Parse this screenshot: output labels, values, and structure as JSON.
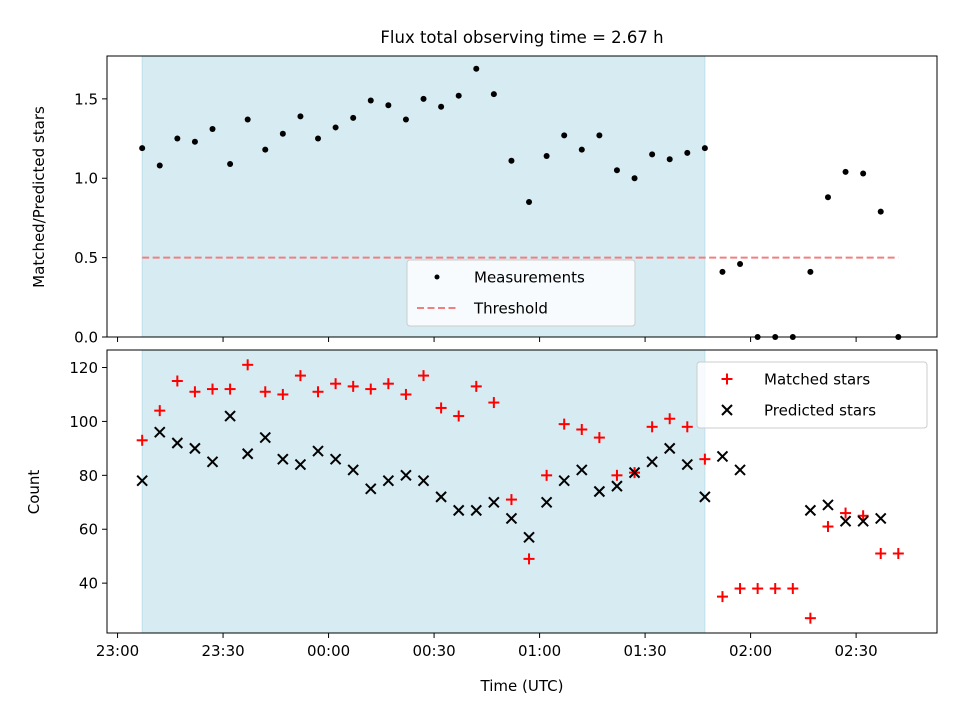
{
  "title": "Flux total observing time = 2.67 h",
  "xlabel": "Time (UTC)",
  "x_tick_labels": [
    "23:00",
    "23:30",
    "00:00",
    "00:30",
    "01:00",
    "01:30",
    "02:00",
    "02:30"
  ],
  "colors": {
    "shade": "#add8e6",
    "measurement": "#000000",
    "threshold": "#f08080",
    "matched": "#ff0000",
    "predicted": "#000000"
  },
  "chart_data": [
    {
      "type": "scatter",
      "ylabel": "Matched/Predicted stars",
      "xlim": [
        "22:57",
        "02:53"
      ],
      "ylim": [
        0,
        1.77
      ],
      "y_ticks": [
        0.0,
        0.5,
        1.0,
        1.5
      ],
      "y_tick_labels": [
        "0.0",
        "0.5",
        "1.0",
        "1.5"
      ],
      "grid": false,
      "legend_placement": "lower-center",
      "shaded_span": [
        "23:07",
        "01:47"
      ],
      "x": [
        "23:07",
        "23:12",
        "23:17",
        "23:22",
        "23:27",
        "23:32",
        "23:37",
        "23:42",
        "23:47",
        "23:52",
        "23:57",
        "00:02",
        "00:07",
        "00:12",
        "00:17",
        "00:22",
        "00:27",
        "00:32",
        "00:37",
        "00:42",
        "00:47",
        "00:52",
        "00:57",
        "01:02",
        "01:07",
        "01:12",
        "01:17",
        "01:22",
        "01:27",
        "01:32",
        "01:37",
        "01:42",
        "01:47",
        "01:52",
        "01:57",
        "02:02",
        "02:07",
        "02:12",
        "02:17",
        "02:22",
        "02:27",
        "02:32",
        "02:37",
        "02:42"
      ],
      "series": [
        {
          "name": "Measurements",
          "marker": "dot",
          "values": [
            1.19,
            1.08,
            1.25,
            1.23,
            1.31,
            1.09,
            1.37,
            1.18,
            1.28,
            1.39,
            1.25,
            1.32,
            1.38,
            1.49,
            1.46,
            1.37,
            1.5,
            1.45,
            1.52,
            1.69,
            1.53,
            1.11,
            0.85,
            1.14,
            1.27,
            1.18,
            1.27,
            1.05,
            1.0,
            1.15,
            1.12,
            1.16,
            1.19,
            0.41,
            0.46,
            0.0,
            0.0,
            0.0,
            0.41,
            0.88,
            1.04,
            1.03,
            0.79,
            0.0
          ]
        },
        {
          "name": "Threshold",
          "marker": "dashed-line",
          "x": [
            "23:07",
            "02:42"
          ],
          "values": [
            0.5,
            0.5
          ]
        }
      ]
    },
    {
      "type": "scatter",
      "ylabel": "Count",
      "xlim": [
        "22:57",
        "02:53"
      ],
      "ylim": [
        21.5,
        126.5
      ],
      "y_ticks": [
        40,
        60,
        80,
        100,
        120
      ],
      "y_tick_labels": [
        "40",
        "60",
        "80",
        "100",
        "120"
      ],
      "grid": false,
      "legend_placement": "upper-right",
      "shaded_span": [
        "23:07",
        "01:47"
      ],
      "x": [
        "23:07",
        "23:12",
        "23:17",
        "23:22",
        "23:27",
        "23:32",
        "23:37",
        "23:42",
        "23:47",
        "23:52",
        "23:57",
        "00:02",
        "00:07",
        "00:12",
        "00:17",
        "00:22",
        "00:27",
        "00:32",
        "00:37",
        "00:42",
        "00:47",
        "00:52",
        "00:57",
        "01:02",
        "01:07",
        "01:12",
        "01:17",
        "01:22",
        "01:27",
        "01:32",
        "01:37",
        "01:42",
        "01:47",
        "01:52",
        "01:57",
        "02:02",
        "02:07",
        "02:12",
        "02:17",
        "02:22",
        "02:27",
        "02:32",
        "02:37",
        "02:42"
      ],
      "series": [
        {
          "name": "Matched stars",
          "marker": "plus",
          "values": [
            93,
            104,
            115,
            111,
            112,
            112,
            121,
            111,
            110,
            117,
            111,
            114,
            113,
            112,
            114,
            110,
            117,
            105,
            102,
            113,
            107,
            71,
            49,
            80,
            99,
            97,
            94,
            80,
            81,
            98,
            101,
            98,
            86,
            35,
            38,
            38,
            38,
            38,
            27,
            61,
            66,
            65,
            51,
            51
          ]
        },
        {
          "name": "Predicted stars",
          "marker": "x",
          "x": [
            "23:07",
            "23:12",
            "23:17",
            "23:22",
            "23:27",
            "23:32",
            "23:37",
            "23:42",
            "23:47",
            "23:52",
            "23:57",
            "00:02",
            "00:07",
            "00:12",
            "00:17",
            "00:22",
            "00:27",
            "00:32",
            "00:37",
            "00:42",
            "00:47",
            "00:52",
            "00:57",
            "01:02",
            "01:07",
            "01:12",
            "01:17",
            "01:22",
            "01:27",
            "01:32",
            "01:37",
            "01:42",
            "01:47",
            "01:52",
            "01:57",
            "02:17",
            "02:22",
            "02:27",
            "02:32",
            "02:37"
          ],
          "values": [
            78,
            96,
            92,
            90,
            85,
            102,
            88,
            94,
            86,
            84,
            89,
            86,
            82,
            75,
            78,
            80,
            78,
            72,
            67,
            67,
            70,
            64,
            57,
            70,
            78,
            82,
            74,
            76,
            81,
            85,
            90,
            84,
            72,
            87,
            82,
            67,
            69,
            63,
            63,
            64
          ]
        }
      ]
    }
  ]
}
